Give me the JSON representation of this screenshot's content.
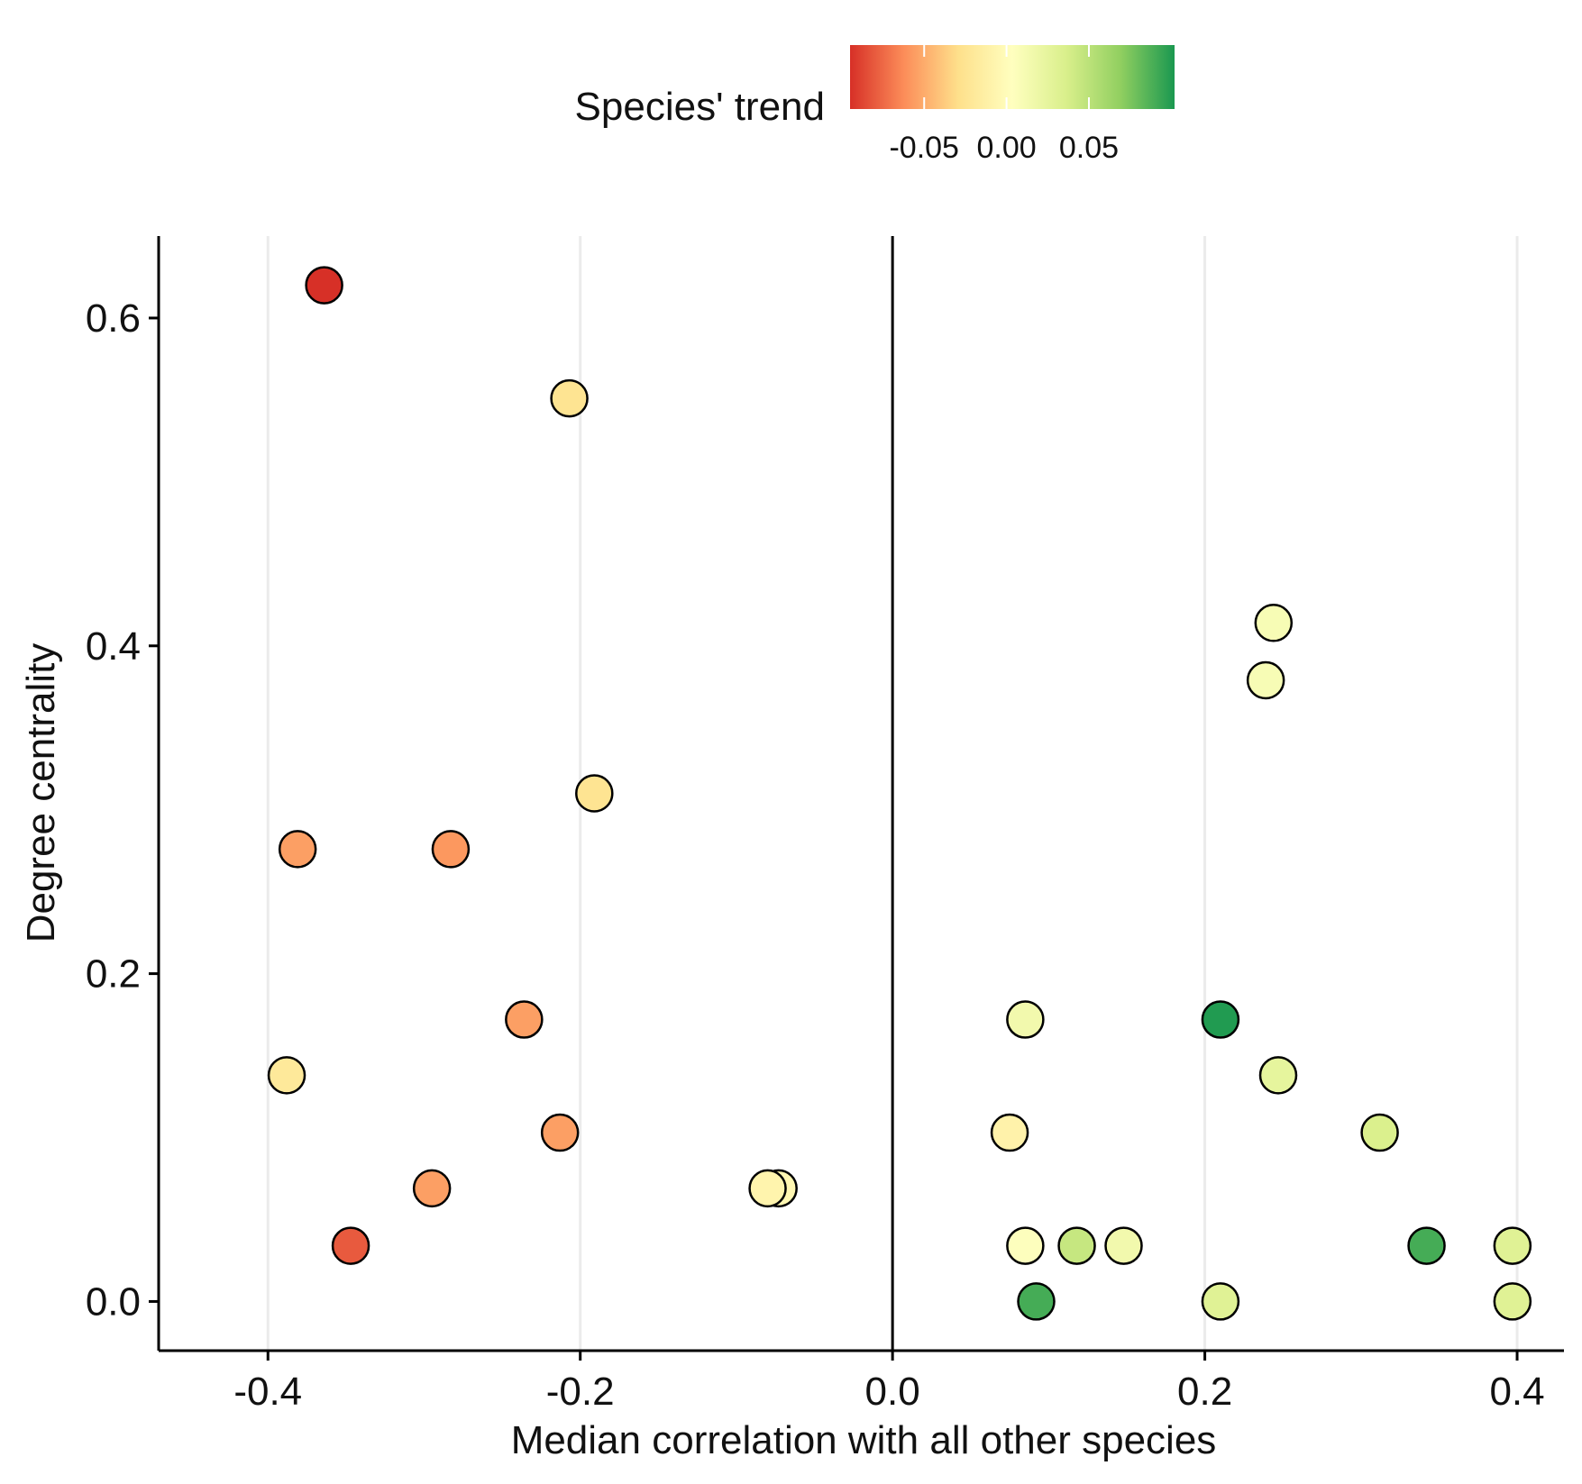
{
  "chart_data": {
    "type": "scatter",
    "xlabel": "Median correlation with all other species",
    "ylabel": "Degree centrality",
    "xlim": [
      -0.47,
      0.43
    ],
    "ylim": [
      -0.03,
      0.65
    ],
    "x_ticks": [
      -0.4,
      -0.2,
      0.0,
      0.2,
      0.4
    ],
    "x_tick_labels": [
      "-0.4",
      "-0.2",
      "0.0",
      "0.2",
      "0.4"
    ],
    "y_ticks": [
      0.0,
      0.2,
      0.4,
      0.6
    ],
    "y_tick_labels": [
      "0.0",
      "0.2",
      "0.4",
      "0.6"
    ],
    "vertical_grid": true,
    "reference_line_x": 0.0,
    "legend": {
      "title": "Species' trend",
      "position": "top",
      "range": [
        -0.095,
        0.102
      ],
      "ticks": [
        -0.05,
        0.0,
        0.05
      ],
      "tick_labels": [
        "-0.05",
        "0.00",
        "0.05"
      ],
      "gradient": [
        "#d73027",
        "#fc8d59",
        "#fee08b",
        "#ffffbf",
        "#d9ef8b",
        "#91cf60",
        "#1a9850"
      ]
    },
    "points": [
      {
        "x": -0.364,
        "y": 0.62,
        "trend": -0.095
      },
      {
        "x": -0.207,
        "y": 0.551,
        "trend": -0.025
      },
      {
        "x": -0.191,
        "y": 0.31,
        "trend": -0.025
      },
      {
        "x": -0.381,
        "y": 0.276,
        "trend": -0.055
      },
      {
        "x": -0.283,
        "y": 0.276,
        "trend": -0.058
      },
      {
        "x": -0.236,
        "y": 0.172,
        "trend": -0.055
      },
      {
        "x": -0.388,
        "y": 0.138,
        "trend": -0.02
      },
      {
        "x": -0.213,
        "y": 0.103,
        "trend": -0.055
      },
      {
        "x": -0.295,
        "y": 0.069,
        "trend": -0.055
      },
      {
        "x": -0.073,
        "y": 0.069,
        "trend": -0.005
      },
      {
        "x": -0.08,
        "y": 0.069,
        "trend": -0.008
      },
      {
        "x": -0.347,
        "y": 0.034,
        "trend": -0.08
      },
      {
        "x": 0.244,
        "y": 0.414,
        "trend": 0.01
      },
      {
        "x": 0.239,
        "y": 0.379,
        "trend": 0.01
      },
      {
        "x": 0.085,
        "y": 0.172,
        "trend": 0.015
      },
      {
        "x": 0.21,
        "y": 0.172,
        "trend": 0.1
      },
      {
        "x": 0.247,
        "y": 0.138,
        "trend": 0.025
      },
      {
        "x": 0.075,
        "y": 0.103,
        "trend": -0.01
      },
      {
        "x": 0.312,
        "y": 0.103,
        "trend": 0.035
      },
      {
        "x": 0.085,
        "y": 0.034,
        "trend": 0.005
      },
      {
        "x": 0.118,
        "y": 0.034,
        "trend": 0.045
      },
      {
        "x": 0.148,
        "y": 0.034,
        "trend": 0.015
      },
      {
        "x": 0.342,
        "y": 0.034,
        "trend": 0.09
      },
      {
        "x": 0.397,
        "y": 0.034,
        "trend": 0.03
      },
      {
        "x": 0.092,
        "y": 0.0,
        "trend": 0.09
      },
      {
        "x": 0.21,
        "y": 0.0,
        "trend": 0.03
      },
      {
        "x": 0.397,
        "y": 0.0,
        "trend": 0.03
      }
    ]
  }
}
